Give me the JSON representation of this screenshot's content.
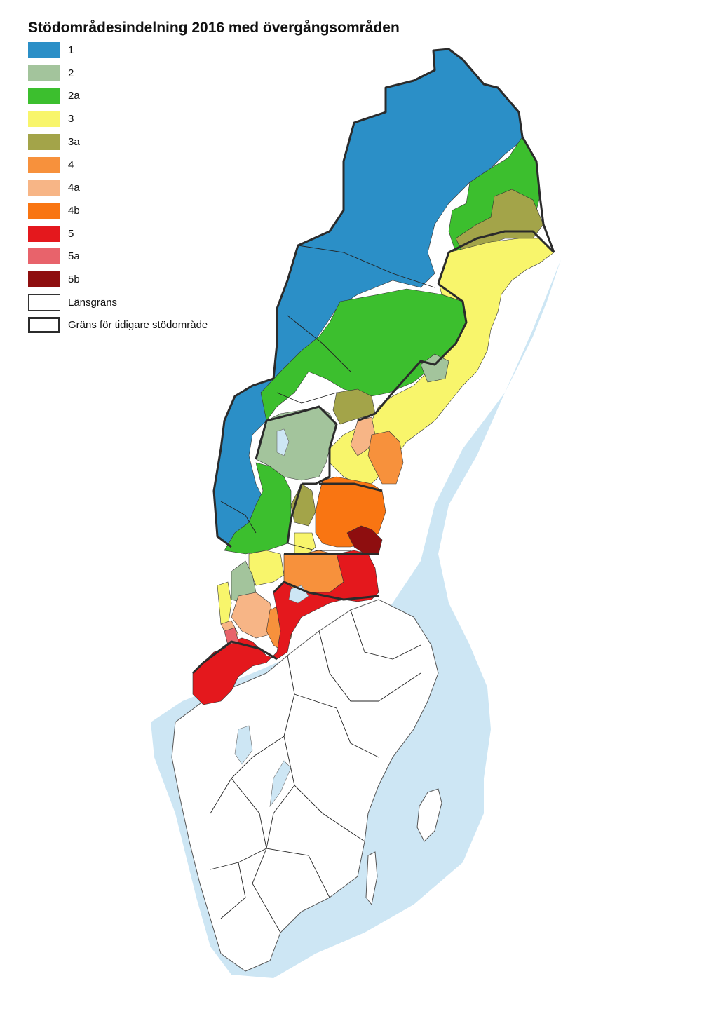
{
  "title": "Stödområdesindelning 2016 med övergångsområden",
  "legend": [
    {
      "label": "1",
      "color": "#2b8fc7",
      "border": "none"
    },
    {
      "label": "2",
      "color": "#a3c49c",
      "border": "none"
    },
    {
      "label": "2a",
      "color": "#3cbf2e",
      "border": "none"
    },
    {
      "label": "3",
      "color": "#f8f56b",
      "border": "none"
    },
    {
      "label": "3a",
      "color": "#a3a449",
      "border": "none"
    },
    {
      "label": "4",
      "color": "#f7913c",
      "border": "none"
    },
    {
      "label": "4a",
      "color": "#f7b586",
      "border": "none"
    },
    {
      "label": "4b",
      "color": "#f97512",
      "border": "none"
    },
    {
      "label": "5",
      "color": "#e4181d",
      "border": "none"
    },
    {
      "label": "5a",
      "color": "#e8636b",
      "border": "none"
    },
    {
      "label": "5b",
      "color": "#8e0e0f",
      "border": "none"
    },
    {
      "label": "Länsgräns",
      "color": "#ffffff",
      "border": "thin"
    },
    {
      "label": "Gräns för tidigare stödområde",
      "color": "#ffffff",
      "border": "thick"
    }
  ],
  "colors": {
    "sea": "#cde6f4",
    "land": "#ffffff",
    "county_border": "#222222",
    "support_border": "#2b2b2b"
  }
}
